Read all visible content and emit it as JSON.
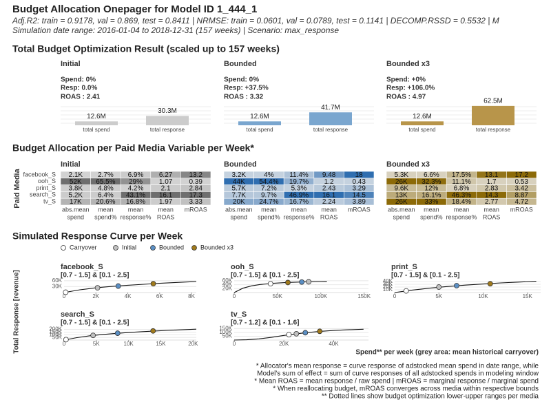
{
  "header": {
    "title": "Budget Allocation Onepager for Model ID 1_444_1",
    "subtitle": "Adj.R2: train = 0.9178, val = 0.869, test = 0.8411 | NRMSE: train = 0.0601, val = 0.0789, test = 0.1141 | DECOMP.RSSD = 0.5532 | M",
    "date_range": "Simulation date range: 2016-01-04 to 2018-12-31 (157 weeks) | Scenario: max_response"
  },
  "optimization": {
    "title": "Total Budget Optimization Result (scaled up to 157 weeks)",
    "ylim": [
      0,
      60
    ],
    "categories": [
      "total spend",
      "total response"
    ],
    "panels": [
      {
        "title": "Initial",
        "spend": "Spend: 0%",
        "resp": "Resp: 0.0%",
        "roas": "ROAS : 2.41",
        "values": [
          12.6,
          30.3
        ],
        "value_labels": [
          "12.6M",
          "30.3M"
        ],
        "color": "#cccccc"
      },
      {
        "title": "Bounded",
        "spend": "Spend: 0%",
        "resp": "Resp: +37.5%",
        "roas": "ROAS : 3.32",
        "values": [
          12.6,
          41.7
        ],
        "value_labels": [
          "12.6M",
          "41.7M"
        ],
        "color": "#7aa6cf"
      },
      {
        "title": "Bounded x3",
        "spend": "Spend: +0%",
        "resp": "Resp: +106.0%",
        "roas": "ROAS : 4.97",
        "values": [
          12.6,
          62.5
        ],
        "value_labels": [
          "12.6M",
          "62.5M"
        ],
        "color": "#b8954a"
      }
    ]
  },
  "allocation": {
    "title": "Budget Allocation per Paid Media Variable per Week*",
    "y_label": "Paid Media",
    "rows": [
      "facebook_S",
      "ooh_S",
      "print_S",
      "search_S",
      "tv_S"
    ],
    "columns": [
      [
        "abs.mean",
        "spend"
      ],
      [
        "mean",
        "spend%"
      ],
      [
        "mean",
        "response%"
      ],
      [
        "mean",
        "ROAS"
      ],
      [
        "mROAS"
      ]
    ],
    "panels": [
      {
        "title": "Initial",
        "color": "#6e6e6e",
        "cells": [
          [
            "2.1K",
            "2.7%",
            "6.9%",
            "6.27",
            "13.2"
          ],
          [
            "52K",
            "65.5%",
            "29%",
            "1.07",
            "0.39"
          ],
          [
            "3.8K",
            "4.8%",
            "4.2%",
            "2.1",
            "2.84"
          ],
          [
            "5.2K",
            "6.4%",
            "43.1%",
            "16.1",
            "17.3"
          ],
          [
            "17K",
            "20.6%",
            "16.8%",
            "1.97",
            "3.33"
          ]
        ]
      },
      {
        "title": "Bounded",
        "color": "#2f6eb0",
        "cells": [
          [
            "3.2K",
            "4%",
            "11.4%",
            "9.48",
            "18"
          ],
          [
            "44K",
            "54.4%",
            "19.7%",
            "1.2",
            "0.43"
          ],
          [
            "5.7K",
            "7.2%",
            "5.3%",
            "2.43",
            "3.29"
          ],
          [
            "7.7K",
            "9.7%",
            "46.9%",
            "16.1",
            "14.5"
          ],
          [
            "20K",
            "24.7%",
            "16.7%",
            "2.24",
            "3.89"
          ]
        ]
      },
      {
        "title": "Bounded x3",
        "color": "#8c6a08",
        "cells": [
          [
            "5.3K",
            "6.6%",
            "17.5%",
            "13.1",
            "17.2"
          ],
          [
            "26K",
            "32.3%",
            "11.1%",
            "1.7",
            "0.53"
          ],
          [
            "9.6K",
            "12%",
            "6.8%",
            "2.83",
            "3.42"
          ],
          [
            "13K",
            "16.1%",
            "46.3%",
            "14.3",
            "8.87"
          ],
          [
            "26K",
            "33%",
            "18.4%",
            "2.77",
            "4.72"
          ]
        ]
      }
    ]
  },
  "curves": {
    "title": "Simulated Response Curve per Week",
    "legend": [
      {
        "name": "Carryover",
        "color": "#ffffff"
      },
      {
        "name": "Initial",
        "color": "#c0c0c0"
      },
      {
        "name": "Bounded",
        "color": "#5b8fc4"
      },
      {
        "name": "Bounded x3",
        "color": "#a07a1c"
      }
    ],
    "y_label": "Total Response [revenue]",
    "x_label": "Spend** per week (grey area: mean historical carryover)",
    "panels": [
      {
        "title": "facebook_S",
        "subtitle": "[0.7 - 1.5] & [0.1 - 2.5]",
        "xlim": [
          0,
          8300
        ],
        "ylim": [
          0,
          70000
        ],
        "xticks": [
          0,
          {
            "value": 2000,
            "label": "2K"
          },
          {
            "value": 4000,
            "label": "4K"
          },
          {
            "value": 6000,
            "label": "6K"
          },
          {
            "value": 8000,
            "label": "8K"
          }
        ],
        "yticks": [
          {
            "value": 30000,
            "label": "30K"
          },
          {
            "value": 60000,
            "label": "60K"
          }
        ],
        "x": [
          0,
          1000,
          2000,
          3000,
          4000,
          5000,
          6000,
          7000,
          8000,
          8300
        ],
        "y": [
          0,
          14000,
          24000,
          31000,
          37000,
          42000,
          47000,
          51000,
          55000,
          56000
        ],
        "points": {
          "x": [
            100,
            2100,
            3400,
            5600
          ],
          "y": [
            1500,
            24000,
            33000,
            45000
          ]
        }
      },
      {
        "title": "ooh_S",
        "subtitle": "[0.7 - 1.5] & [0.1 - 2.5]",
        "xlim": [
          0,
          155000
        ],
        "ylim": [
          0,
          70000
        ],
        "xticks": [
          0,
          {
            "value": 50000,
            "label": "50K"
          },
          {
            "value": 100000,
            "label": "100K"
          },
          {
            "value": 150000,
            "label": "150K"
          }
        ],
        "yticks": [
          {
            "value": 20000,
            "label": "20K"
          },
          {
            "value": 40000,
            "label": "40K"
          },
          {
            "value": 60000,
            "label": "60K"
          }
        ],
        "x": [
          0,
          10000,
          20000,
          30000,
          45000,
          60000,
          80000,
          100000,
          107000
        ],
        "y": [
          0,
          22000,
          34000,
          41000,
          47000,
          51000,
          54000,
          56000,
          56500
        ],
        "points": {
          "x": [
            42000,
            86000,
            78000,
            62000
          ],
          "y": [
            45000,
            54500,
            53500,
            51000
          ]
        }
      },
      {
        "title": "print_S",
        "subtitle": "[0.7 - 1.5] & [0.1 - 2.5]",
        "xlim": [
          0,
          16500
        ],
        "ylim": [
          0,
          50000
        ],
        "xticks": [
          0,
          {
            "value": 5000,
            "label": "5K"
          },
          {
            "value": 10000,
            "label": "10K"
          },
          {
            "value": 15000,
            "label": "15K"
          }
        ],
        "yticks": [
          {
            "value": 10000,
            "label": "10K"
          },
          {
            "value": 20000,
            "label": "20K"
          },
          {
            "value": 30000,
            "label": "30K"
          },
          {
            "value": 40000,
            "label": "40K"
          }
        ],
        "x": [
          0,
          2000,
          4000,
          6000,
          8000,
          10000,
          12000,
          14000,
          16000
        ],
        "y": [
          0,
          9000,
          16000,
          22000,
          27000,
          31000,
          35000,
          38000,
          41000
        ],
        "points": {
          "x": [
            1300,
            5000,
            7000,
            10800
          ],
          "y": [
            6000,
            20000,
            25000,
            32000
          ]
        }
      },
      {
        "title": "search_S",
        "subtitle": "[0.7 - 1.5] & [0.1 - 2.5]",
        "xlim": [
          0,
          20500
        ],
        "ylim": [
          0,
          260000
        ],
        "xticks": [
          0,
          {
            "value": 5000,
            "label": "5K"
          },
          {
            "value": 10000,
            "label": "10K"
          },
          {
            "value": 15000,
            "label": "15K"
          },
          {
            "value": 20000,
            "label": "20K"
          }
        ],
        "yticks": [
          {
            "value": 50000,
            "label": "50K"
          },
          {
            "value": 100000,
            "label": "100K"
          },
          {
            "value": 150000,
            "label": "150K"
          },
          {
            "value": 200000,
            "label": "200K"
          }
        ],
        "x": [
          0,
          2000,
          4000,
          6000,
          8000,
          10000,
          12000,
          14000,
          16000,
          18000,
          20500
        ],
        "y": [
          0,
          45000,
          80000,
          105000,
          125000,
          142000,
          157000,
          170000,
          182000,
          193000,
          205000
        ],
        "points": {
          "x": [
            300,
            4500,
            8300,
            13800
          ],
          "y": [
            8000,
            88000,
            129000,
            172000
          ]
        }
      },
      {
        "title": "tv_S",
        "subtitle": "[0.7 - 1.2] & [0.1 - 1.6]",
        "xlim": [
          0,
          54000
        ],
        "ylim": [
          0,
          180000
        ],
        "xticks": [
          0,
          {
            "value": 20000,
            "label": "20K"
          },
          {
            "value": 40000,
            "label": "40K"
          }
        ],
        "yticks": [
          {
            "value": 50000,
            "label": "50K"
          },
          {
            "value": 100000,
            "label": "100K"
          },
          {
            "value": 150000,
            "label": "150K"
          }
        ],
        "x": [
          0,
          5000,
          10000,
          15000,
          20000,
          25000,
          30000,
          35000,
          40000,
          45000,
          50000,
          52000
        ],
        "y": [
          0,
          4000,
          15000,
          35000,
          60000,
          82000,
          100000,
          114000,
          125000,
          133000,
          139000,
          141000
        ],
        "points": {
          "x": [
            22000,
            25000,
            28600,
            34400
          ],
          "y": [
            70000,
            82000,
            96000,
            114000
          ]
        }
      }
    ]
  },
  "footnotes": [
    "* Allocator's mean response = curve response of adstocked mean spend in date range, while",
    "Model's sum of effect = sum of curve responses of all adstocked spends in modeling window",
    "* Mean ROAS = mean response / raw spend | mROAS = marginal response / marginal spend",
    "* When reallocating budget, mROAS converges across media within respective bounds",
    "** Dotted lines show budget optimization lower-upper ranges per media"
  ]
}
